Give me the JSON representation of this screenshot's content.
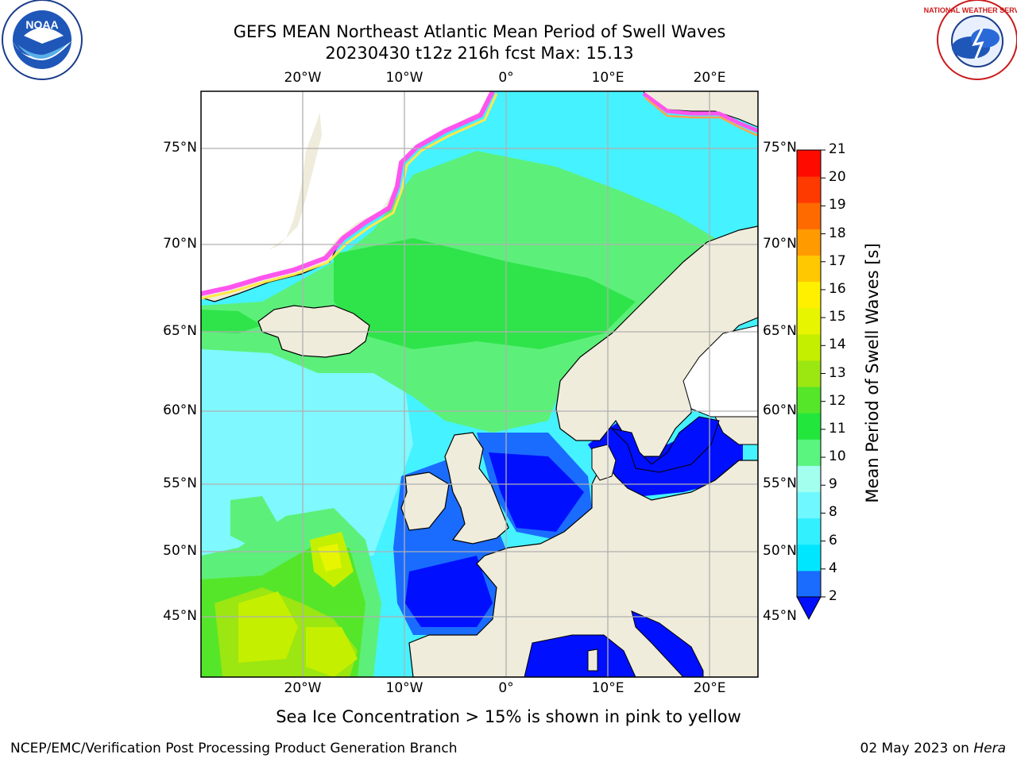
{
  "header": {
    "title_line1": "GEFS MEAN Northeast Atlantic Mean Period of Swell Waves",
    "title_line2": "20230430 t12z 216h fcst   Max: 15.13"
  },
  "logos": {
    "left": {
      "name": "NOAA",
      "ring_text": "NATIONAL OCEANIC AND ATMOSPHERIC ADMINISTRATION · U.S. DEPARTMENT OF COMMERCE"
    },
    "right": {
      "name": "NATIONAL WEATHER SERVICE"
    }
  },
  "map": {
    "lon_labels": [
      "20°W",
      "10°W",
      "0°",
      "10°E",
      "20°E"
    ],
    "lat_labels": [
      "75°N",
      "70°N",
      "65°N",
      "60°N",
      "55°N",
      "50°N",
      "45°N"
    ],
    "colors": {
      "land": "#efecdc",
      "ice_no_data": "#ffffff",
      "grid": "#b0b0b0",
      "coast": "#000000"
    }
  },
  "colorbar": {
    "label": "Mean Period of Swell Waves [s]",
    "ticks": [
      "2",
      "4",
      "6",
      "8",
      "9",
      "10",
      "11",
      "12",
      "13",
      "14",
      "15",
      "16",
      "17",
      "18",
      "19",
      "20",
      "21"
    ],
    "colors": [
      "#1a6cff",
      "#00e6ff",
      "#33f0ff",
      "#6ff8ff",
      "#a3ffee",
      "#59f57f",
      "#22e63c",
      "#55e62a",
      "#9ce612",
      "#c4f000",
      "#e8f500",
      "#fff000",
      "#ffc800",
      "#ff9a00",
      "#ff6a00",
      "#ff3a00",
      "#ff0a00"
    ],
    "under_color": "#0010ff"
  },
  "caption": "Sea Ice Concentration > 15% is shown in pink to yellow",
  "footer": {
    "left": "NCEP/EMC/Verification Post Processing Product Generation Branch",
    "right_date": "02 May 2023 on ",
    "right_host": "Hera"
  }
}
